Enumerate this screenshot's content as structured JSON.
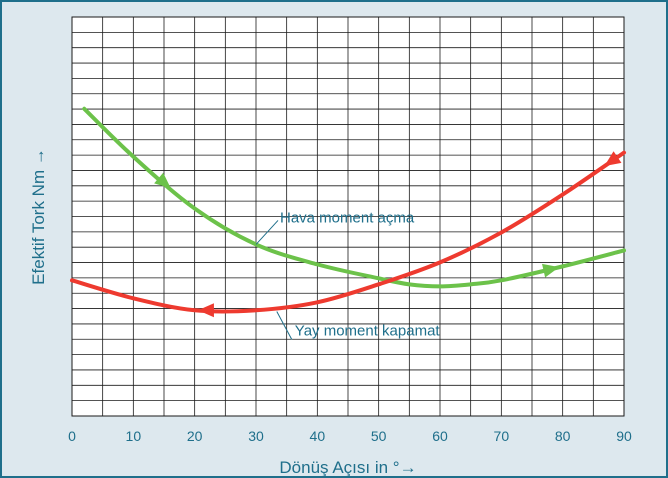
{
  "chart_data": {
    "type": "line",
    "xlabel": "Dönüş Açısı in °→",
    "ylabel": "Efektif Tork Nm →",
    "xlim": [
      0,
      90
    ],
    "x_ticks": [
      "0",
      "10",
      "20",
      "30",
      "40",
      "50",
      "60",
      "70",
      "80",
      "90"
    ],
    "ylim": [
      0,
      100
    ],
    "y_ticks_labeled": false,
    "grid": true,
    "x_grid_step": 5,
    "y_grid_count": 26,
    "series": [
      {
        "name": "Hava moment açma",
        "color": "#6cc24a",
        "direction": "increasing angle",
        "x": [
          2,
          10,
          20,
          30,
          40,
          50,
          55,
          60,
          65,
          70,
          80,
          90
        ],
        "y": [
          77,
          65,
          52,
          43,
          38,
          34.5,
          33,
          32.5,
          33,
          34,
          37.5,
          41.5
        ]
      },
      {
        "name": "Yay moment kapamat",
        "color": "#ee3a2f",
        "direction": "decreasing angle",
        "x": [
          0,
          10,
          20,
          30,
          40,
          50,
          60,
          70,
          80,
          90
        ],
        "y": [
          34,
          29.5,
          26.5,
          26.5,
          28.5,
          33,
          38.5,
          46,
          55.5,
          66
        ]
      }
    ],
    "annotations": [
      {
        "text": "Hava moment açma",
        "series": 0,
        "at_x": 30
      },
      {
        "text": "Yay moment kapamat",
        "series": 1,
        "at_x": 36
      }
    ]
  }
}
